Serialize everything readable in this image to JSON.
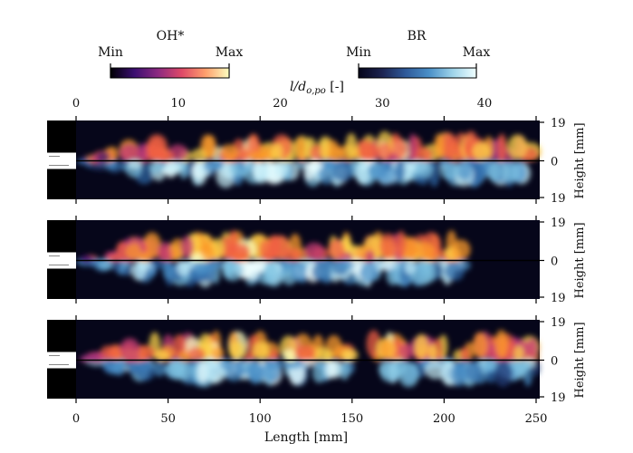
{
  "colorbars": [
    {
      "title": "OH*",
      "min_label": "Min",
      "max_label": "Max",
      "colors": [
        "#000004",
        "#3b0f70",
        "#8c2981",
        "#de4968",
        "#fe9f6d",
        "#fcfdbf"
      ]
    },
    {
      "title": "BR",
      "min_label": "Min",
      "max_label": "Max",
      "colors": [
        "#05051a",
        "#1c2350",
        "#2f5a9a",
        "#4a90c8",
        "#9fd4ea",
        "#f0ffff"
      ]
    }
  ],
  "top_axis": {
    "label": "l/d",
    "label_sub": "o,po",
    "label_unit": " [-]",
    "ticks": [
      "0",
      "10",
      "20",
      "30",
      "40"
    ]
  },
  "bottom_axis": {
    "label": "Length [mm]",
    "ticks": [
      "0",
      "50",
      "100",
      "150",
      "200",
      "250"
    ]
  },
  "right_axis": {
    "label": "Height [mm]",
    "ticks": [
      "19",
      "0",
      "19"
    ]
  },
  "panels": [
    {
      "flame_end_mm": 250,
      "gap_mm": null
    },
    {
      "flame_end_mm": 210,
      "gap_mm": null
    },
    {
      "flame_end_mm": 250,
      "gap_mm": 155
    }
  ]
}
